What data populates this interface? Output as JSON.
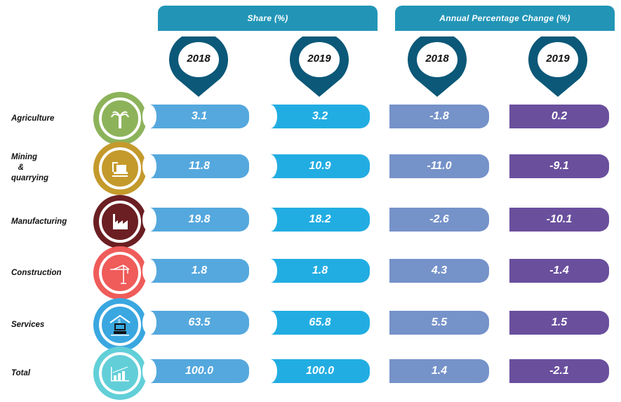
{
  "headers": {
    "share": "Share (%)",
    "change": "Annual Percentage Change (%)"
  },
  "years": [
    "2018",
    "2019",
    "2018",
    "2019"
  ],
  "colors": {
    "header": "#2295b7",
    "pin": "#0b5878",
    "share_2018": "#55a8dd",
    "share_2019": "#22ade2",
    "change_2018": "#7592c9",
    "change_2019": "#6a4f9d"
  },
  "rows": [
    {
      "label": "Agriculture",
      "icon": "palm-tree-icon",
      "color": "#8db35a",
      "values": [
        "3.1",
        "3.2",
        "-1.8",
        "0.2"
      ]
    },
    {
      "label": "Mining & quarrying",
      "icon": "oil-rig-icon",
      "color": "#c49a2c",
      "values": [
        "11.8",
        "10.9",
        "-11.0",
        "-9.1"
      ]
    },
    {
      "label": "Manufacturing",
      "icon": "factory-icon",
      "color": "#6b1f23",
      "values": [
        "19.8",
        "18.2",
        "-2.6",
        "-10.1"
      ]
    },
    {
      "label": "Construction",
      "icon": "crane-icon",
      "color": "#ef5c5a",
      "values": [
        "1.8",
        "1.8",
        "4.3",
        "-1.4"
      ]
    },
    {
      "label": "Services",
      "icon": "bank-computer-icon",
      "color": "#3aa7e0",
      "values": [
        "63.5",
        "65.8",
        "5.5",
        "1.5"
      ]
    },
    {
      "label": "Total",
      "icon": "growth-chart-icon",
      "color": "#62cfd8",
      "values": [
        "100.0",
        "100.0",
        "1.4",
        "-2.1"
      ]
    }
  ],
  "chart_data": {
    "type": "table",
    "columns": [
      "Share (%) 2018",
      "Share (%) 2019",
      "Annual Percentage Change (%) 2018",
      "Annual Percentage Change (%) 2019"
    ],
    "categories": [
      "Agriculture",
      "Mining & quarrying",
      "Manufacturing",
      "Construction",
      "Services",
      "Total"
    ],
    "series": [
      {
        "name": "Share (%) 2018",
        "values": [
          3.1,
          11.8,
          19.8,
          1.8,
          63.5,
          100.0
        ]
      },
      {
        "name": "Share (%) 2019",
        "values": [
          3.2,
          10.9,
          18.2,
          1.8,
          65.8,
          100.0
        ]
      },
      {
        "name": "Annual Percentage Change (%) 2018",
        "values": [
          -1.8,
          -11.0,
          -2.6,
          4.3,
          5.5,
          1.4
        ]
      },
      {
        "name": "Annual Percentage Change (%) 2019",
        "values": [
          0.2,
          -9.1,
          -10.1,
          -1.4,
          1.5,
          -2.1
        ]
      }
    ]
  }
}
